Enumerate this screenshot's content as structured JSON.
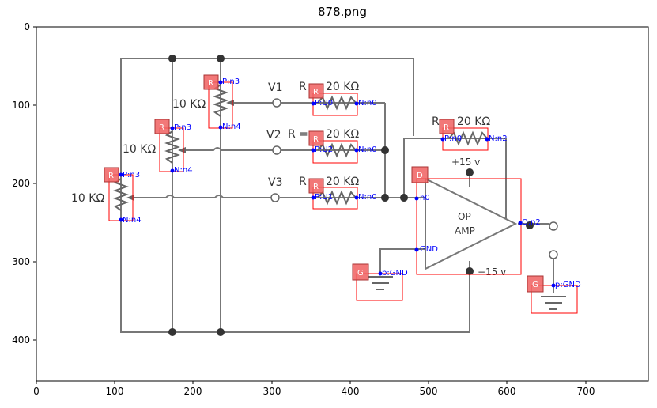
{
  "figure": {
    "title": "878.png"
  },
  "axes": {
    "x_ticks": [
      "0",
      "100",
      "200",
      "300",
      "400",
      "500",
      "600",
      "700"
    ],
    "y_ticks": [
      "0",
      "100",
      "200",
      "300",
      "400"
    ]
  },
  "circuit_labels": {
    "r_top_left": "10 KΩ",
    "r_mid_left": "10 KΩ",
    "r_bot_left": "10 KΩ",
    "v1": "V1",
    "v2": "V2",
    "v3": "V3",
    "rf1": "R",
    "rf1_val": "20 KΩ",
    "rf2": "R =",
    "rf2_val": "20 KΩ",
    "rf3": "R",
    "rf3_val": "20 KΩ",
    "rf4": "R",
    "rf4_val": "20 KΩ",
    "pos_supply": "+15 v",
    "neg_supply": "−15 v",
    "op_line1": "OP",
    "op_line2": "AMP"
  },
  "detections": {
    "badges": [
      "R",
      "R",
      "R",
      "R",
      "R",
      "R",
      "R",
      "D",
      "G",
      "G"
    ],
    "pins": [
      "P:n3",
      "N:n4",
      "P:n3",
      "N:n4",
      "P:n3",
      "N:n4",
      "P:U0",
      "N:n0",
      "P:U2",
      "N:n0",
      "P:U1",
      "N:n0",
      "P:n0",
      "N:n2",
      "n0",
      "GND",
      "O:n2",
      "p:GND",
      "p:GND"
    ]
  }
}
